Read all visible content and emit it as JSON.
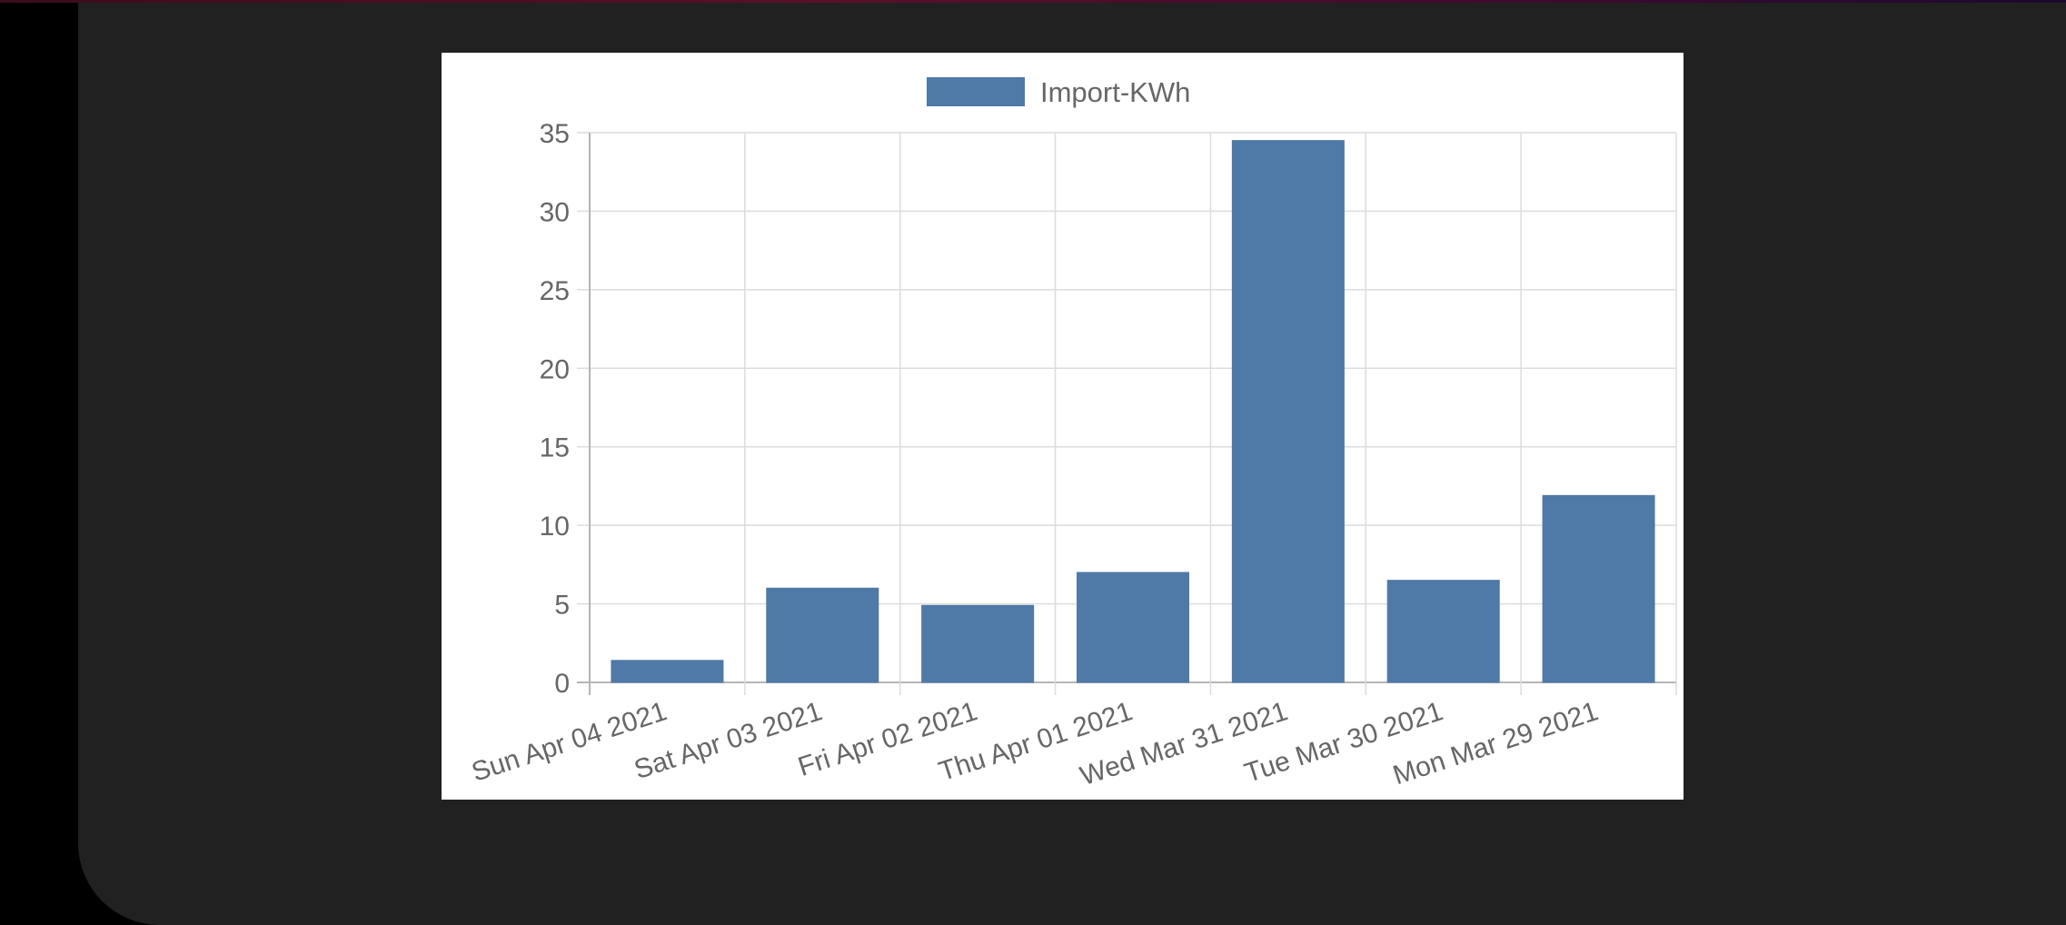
{
  "colors": {
    "bar_fill": "#4f79a7",
    "bar_border": "#4f79a7",
    "page_background": "#000000",
    "panel_background": "#212121",
    "chart_background": "#ffffff",
    "text": "#666666"
  },
  "chart_data": {
    "type": "bar",
    "title": "",
    "xlabel": "",
    "ylabel": "",
    "categories": [
      "Sun Apr 04 2021",
      "Sat Apr 03 2021",
      "Fri Apr 02 2021",
      "Thu Apr 01 2021",
      "Wed Mar 31 2021",
      "Tue Mar 30 2021",
      "Mon Mar 29 2021"
    ],
    "series": [
      {
        "name": "Import-KWh",
        "values": [
          1.4,
          6.0,
          4.9,
          7.0,
          34.5,
          6.5,
          11.9
        ]
      }
    ],
    "ylim": [
      0,
      35
    ],
    "y_ticks": [
      0,
      5,
      10,
      15,
      20,
      25,
      30,
      35
    ],
    "grid": true,
    "legend_position": "top"
  }
}
